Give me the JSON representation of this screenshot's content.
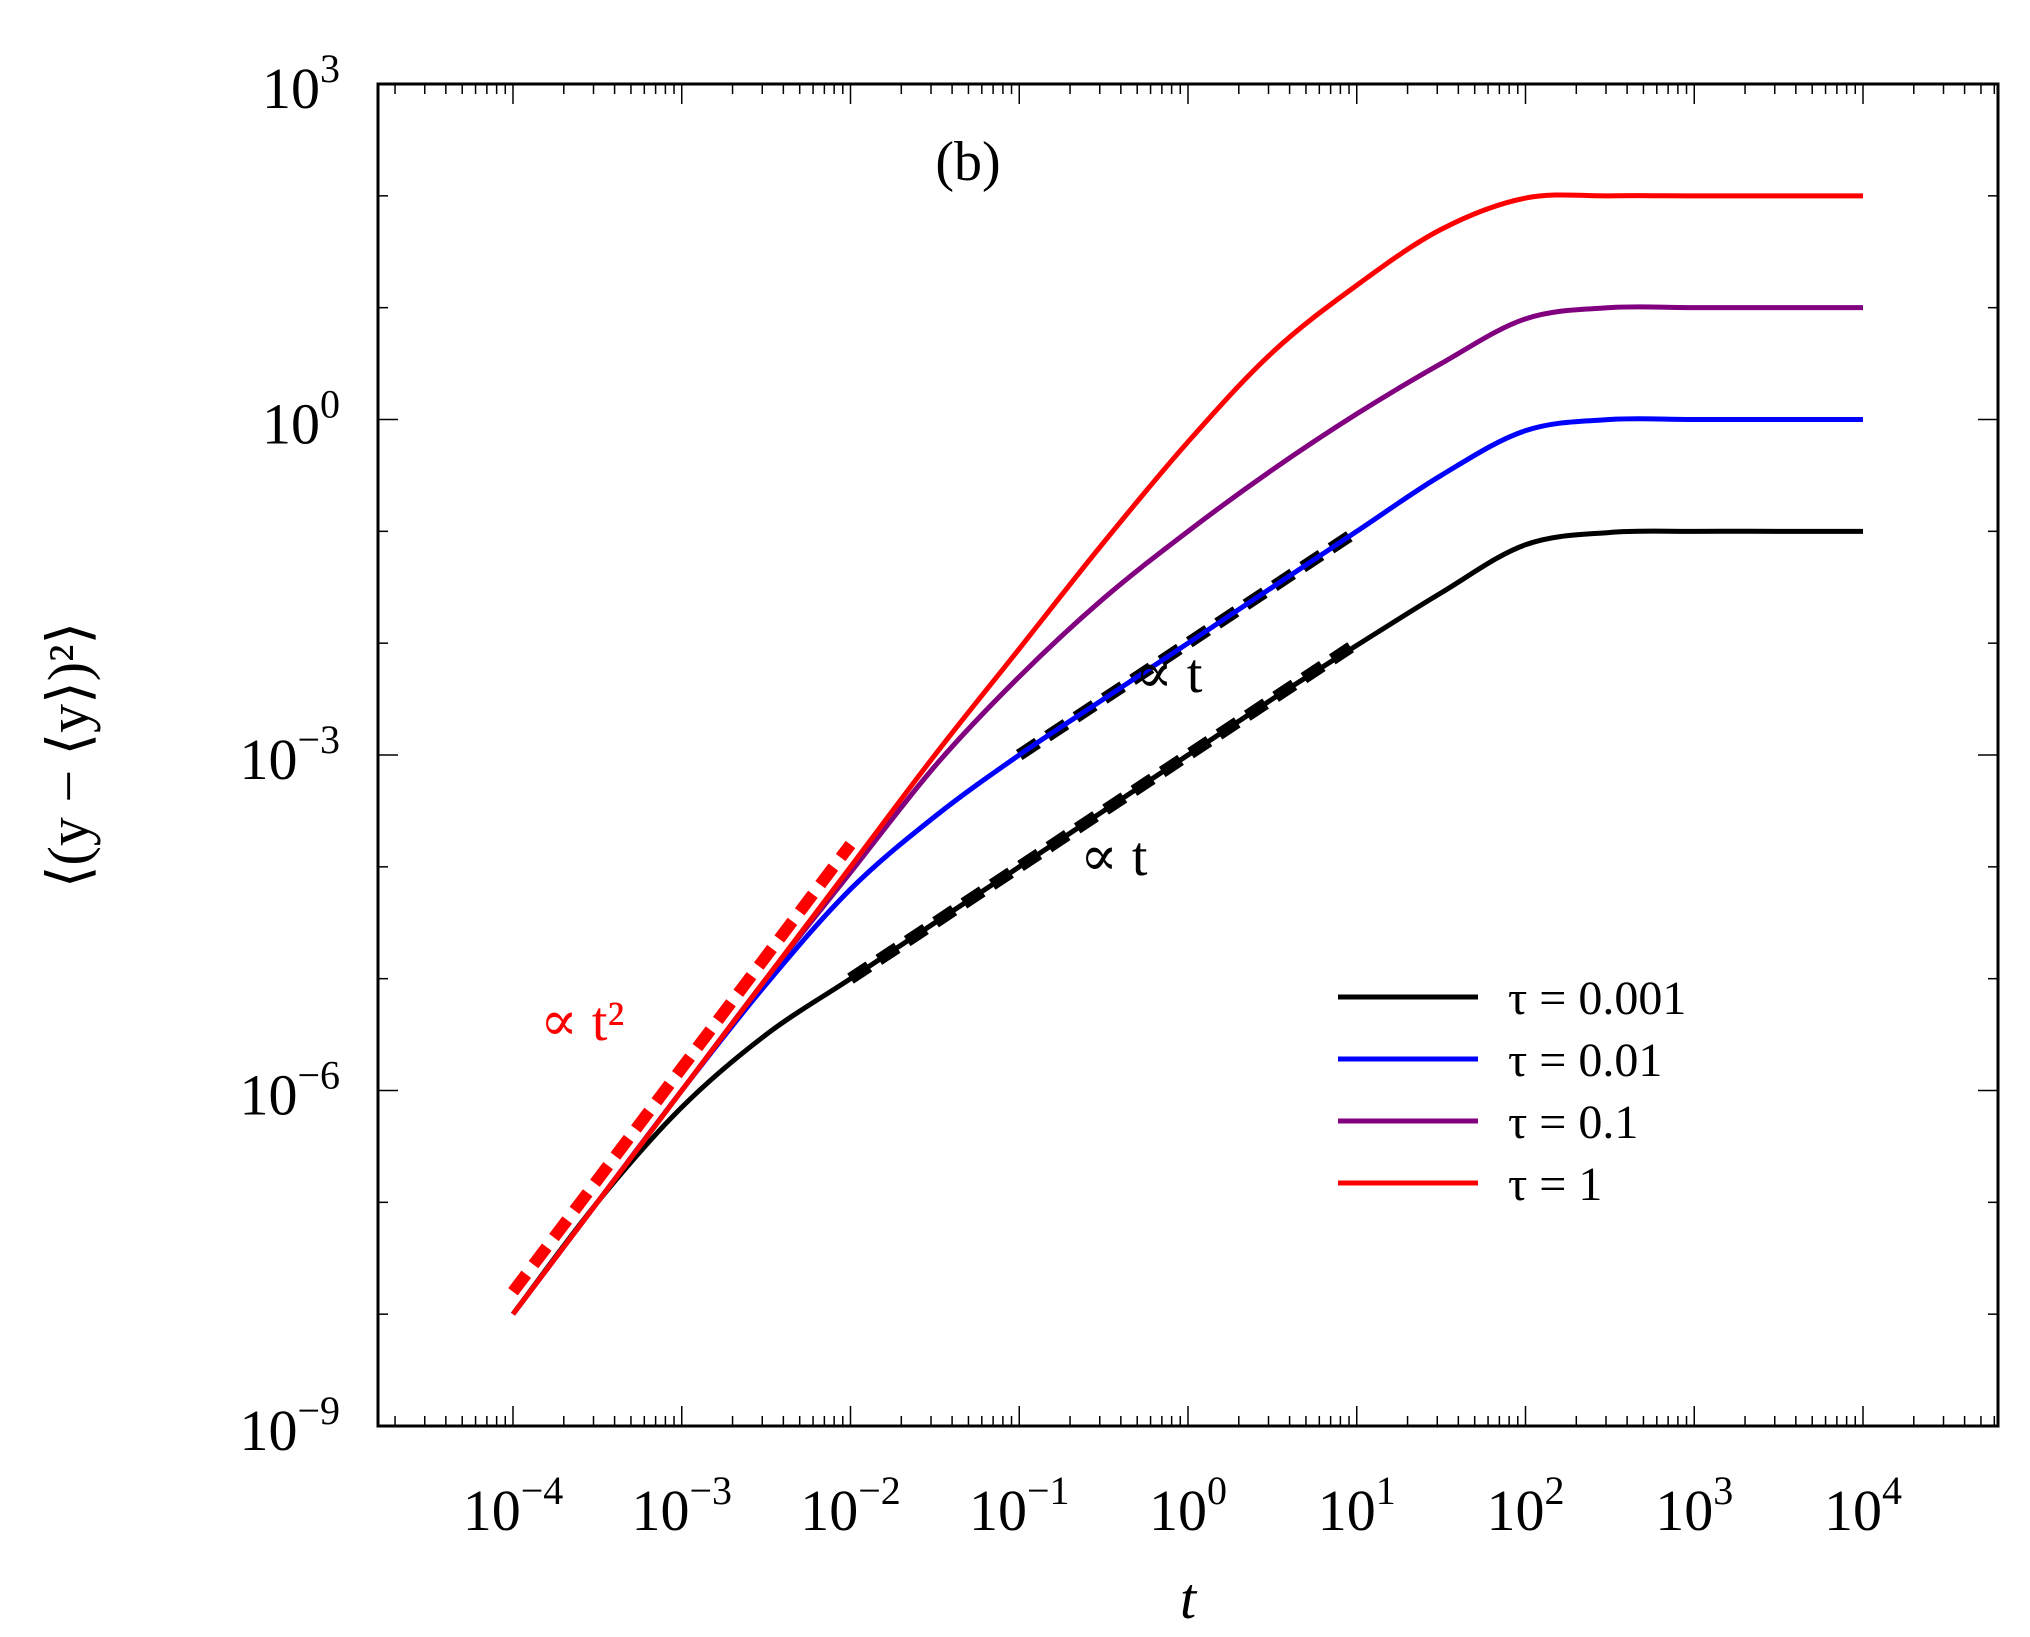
{
  "chart_data": {
    "type": "line",
    "panel_label": "(b)",
    "xlabel": "t",
    "ylabel": "⟨(y − ⟨y⟩)²⟩",
    "xscale": "log",
    "yscale": "log",
    "xlim_log10": [
      -4.8,
      4.8
    ],
    "ylim_log10": [
      -9,
      3
    ],
    "x_ticks": [
      {
        "base": "10",
        "exp": "−4",
        "log": -4
      },
      {
        "base": "10",
        "exp": "−3",
        "log": -3
      },
      {
        "base": "10",
        "exp": "−2",
        "log": -2
      },
      {
        "base": "10",
        "exp": "−1",
        "log": -1
      },
      {
        "base": "10",
        "exp": "0",
        "log": 0
      },
      {
        "base": "10",
        "exp": "1",
        "log": 1
      },
      {
        "base": "10",
        "exp": "2",
        "log": 2
      },
      {
        "base": "10",
        "exp": "3",
        "log": 3
      },
      {
        "base": "10",
        "exp": "4",
        "log": 4
      }
    ],
    "y_ticks": [
      {
        "base": "10",
        "exp": "−9",
        "log": -9
      },
      {
        "base": "10",
        "exp": "−6",
        "log": -6
      },
      {
        "base": "10",
        "exp": "−3",
        "log": -3
      },
      {
        "base": "10",
        "exp": "0",
        "log": 0
      },
      {
        "base": "10",
        "exp": "3",
        "log": 3
      }
    ],
    "legend_position": "lower-right",
    "series": [
      {
        "name": "τ = 0.001",
        "color": "#000000",
        "x_log10": [
          -4,
          -3.5,
          -3,
          -2.5,
          -2,
          -1.5,
          -1,
          -0.5,
          0,
          0.5,
          1,
          1.5,
          2,
          2.5,
          3,
          3.5,
          4
        ],
        "y_log10": [
          -8.0,
          -7.0,
          -6.15,
          -5.5,
          -5.0,
          -4.5,
          -4.0,
          -3.5,
          -3.0,
          -2.5,
          -2.02,
          -1.55,
          -1.12,
          -1.01,
          -1.0,
          -1.0,
          -1.0
        ]
      },
      {
        "name": "τ = 0.01",
        "color": "#0000ff",
        "x_log10": [
          -4,
          -3.5,
          -3,
          -2.5,
          -2,
          -1.5,
          -1,
          -0.5,
          0,
          0.5,
          1,
          1.5,
          2,
          2.5,
          3,
          3.5,
          4
        ],
        "y_log10": [
          -8.0,
          -7.0,
          -6.0,
          -5.05,
          -4.2,
          -3.55,
          -3.0,
          -2.5,
          -2.0,
          -1.5,
          -1.0,
          -0.5,
          -0.1,
          0.0,
          0.0,
          0.0,
          0.0
        ]
      },
      {
        "name": "τ = 0.1",
        "color": "#800080",
        "x_log10": [
          -4,
          -3.5,
          -3,
          -2.5,
          -2,
          -1.5,
          -1,
          -0.5,
          0,
          0.5,
          1,
          1.5,
          2,
          2.5,
          3,
          3.5,
          4
        ],
        "y_log10": [
          -8.0,
          -7.0,
          -6.0,
          -5.0,
          -4.05,
          -3.1,
          -2.3,
          -1.6,
          -1.0,
          -0.45,
          0.05,
          0.5,
          0.9,
          1.0,
          1.0,
          1.0,
          1.0
        ]
      },
      {
        "name": "τ = 1",
        "color": "#ff0000",
        "x_log10": [
          -4,
          -3.5,
          -3,
          -2.5,
          -2,
          -1.5,
          -1,
          -0.5,
          0,
          0.5,
          1,
          1.5,
          2,
          2.5,
          3,
          3.5,
          4
        ],
        "y_log10": [
          -8.0,
          -7.0,
          -6.0,
          -5.0,
          -4.0,
          -3.0,
          -2.05,
          -1.1,
          -0.2,
          0.6,
          1.2,
          1.7,
          1.98,
          2.0,
          2.0,
          2.0,
          2.0
        ]
      }
    ],
    "guides": [
      {
        "label": "∝ t²",
        "color": "#ff0000",
        "x_log10": [
          -4,
          -2
        ],
        "y_log10": [
          -7.8,
          -3.8
        ]
      },
      {
        "label": "∝ t",
        "color": "#000000",
        "x_log10": [
          -2,
          1
        ],
        "y_log10": [
          -5.0,
          -2.0
        ]
      },
      {
        "label": "∝ t",
        "color": "#000000",
        "x_log10": [
          -1,
          1
        ],
        "y_log10": [
          -3.0,
          -1.0
        ]
      }
    ]
  }
}
